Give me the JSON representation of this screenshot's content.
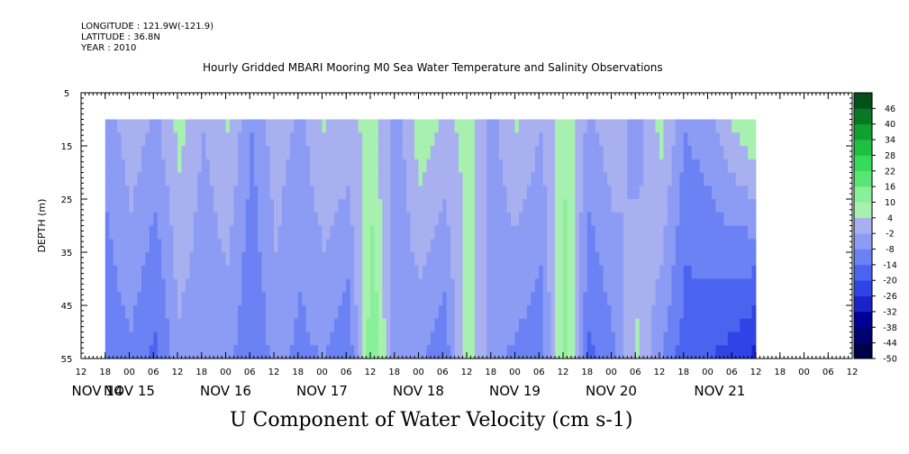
{
  "header": {
    "longitude": "LONGITUDE : 121.9W(-121.9)",
    "latitude": "LATITUDE : 36.8N",
    "year": "YEAR : 2010"
  },
  "chart_data": {
    "type": "heatmap",
    "title": "Hourly Gridded MBARI Mooring M0 Sea Water Temperature and Salinity Observations",
    "xlabel": "U Component of Water Velocity (cm s-1)",
    "ylabel": "DEPTH (m)",
    "ylim": [
      55,
      5
    ],
    "y_ticks": [
      5,
      15,
      25,
      35,
      45,
      55
    ],
    "x_hour_ticks": [
      "12",
      "18",
      "00",
      "06",
      "12",
      "18",
      "00",
      "06",
      "12",
      "18",
      "00",
      "06",
      "12",
      "18",
      "00",
      "06",
      "12",
      "18",
      "00",
      "06",
      "12",
      "18",
      "00",
      "06",
      "12",
      "18",
      "00",
      "06",
      "12",
      "18",
      "00",
      "06",
      "12"
    ],
    "x_day_labels": [
      "NOV 14",
      "NOV 15",
      "NOV 16",
      "NOV 17",
      "NOV 18",
      "NOV 19",
      "NOV 20",
      "NOV 21"
    ],
    "data_start": "2010-11-14 18:00",
    "data_end": "2010-11-21 12:00",
    "depth_range": [
      10,
      55
    ],
    "colorbar": {
      "ticks": [
        46,
        40,
        34,
        28,
        22,
        16,
        10,
        4,
        -2,
        -8,
        -14,
        -20,
        -26,
        -32,
        -38,
        -44,
        -50
      ],
      "range": [
        -50,
        52
      ],
      "colors": [
        "#00004a",
        "#000070",
        "#000096",
        "#1a22c8",
        "#3044e6",
        "#4a64f0",
        "#6a82f4",
        "#8c9cf4",
        "#a8b0f0",
        "#a8f0b0",
        "#88f098",
        "#5ae676",
        "#36dc58",
        "#1ec040",
        "#10a030",
        "#087824",
        "#02501a"
      ]
    },
    "velocity_profile": [
      {
        "t": "2010-11-14 18:00",
        "surface": -6,
        "bottom": -12
      },
      {
        "t": "2010-11-15 00:00",
        "surface": 2,
        "bottom": -10
      },
      {
        "t": "2010-11-15 06:00",
        "surface": -4,
        "bottom": -16
      },
      {
        "t": "2010-11-15 12:00",
        "surface": 6,
        "bottom": -4
      },
      {
        "t": "2010-11-15 18:00",
        "surface": -2,
        "bottom": -8
      },
      {
        "t": "2010-11-16 00:00",
        "surface": 4,
        "bottom": -6
      },
      {
        "t": "2010-11-16 06:00",
        "surface": -8,
        "bottom": -14
      },
      {
        "t": "2010-11-16 12:00",
        "surface": 2,
        "bottom": -6
      },
      {
        "t": "2010-11-16 18:00",
        "surface": -4,
        "bottom": -10
      },
      {
        "t": "2010-11-17 00:00",
        "surface": 4,
        "bottom": -8
      },
      {
        "t": "2010-11-17 06:00",
        "surface": 2,
        "bottom": -14
      },
      {
        "t": "2010-11-17 12:00",
        "surface": 6,
        "bottom": 16
      },
      {
        "t": "2010-11-17 18:00",
        "surface": -6,
        "bottom": -6
      },
      {
        "t": "2010-11-18 00:00",
        "surface": 8,
        "bottom": -8
      },
      {
        "t": "2010-11-18 06:00",
        "surface": 2,
        "bottom": -12
      },
      {
        "t": "2010-11-18 12:00",
        "surface": 6,
        "bottom": 8
      },
      {
        "t": "2010-11-18 18:00",
        "surface": -4,
        "bottom": -6
      },
      {
        "t": "2010-11-19 00:00",
        "surface": 4,
        "bottom": -10
      },
      {
        "t": "2010-11-19 06:00",
        "surface": -2,
        "bottom": -12
      },
      {
        "t": "2010-11-19 12:00",
        "surface": 8,
        "bottom": 14
      },
      {
        "t": "2010-11-19 18:00",
        "surface": -4,
        "bottom": -16
      },
      {
        "t": "2010-11-20 00:00",
        "surface": 2,
        "bottom": -10
      },
      {
        "t": "2010-11-20 06:00",
        "surface": -6,
        "bottom": 6
      },
      {
        "t": "2010-11-20 12:00",
        "surface": 6,
        "bottom": -8
      },
      {
        "t": "2010-11-20 18:00",
        "surface": -8,
        "bottom": -18
      },
      {
        "t": "2010-11-21 00:00",
        "surface": -4,
        "bottom": -20
      },
      {
        "t": "2010-11-21 06:00",
        "surface": 4,
        "bottom": -24
      },
      {
        "t": "2010-11-21 12:00",
        "surface": 10,
        "bottom": -30
      }
    ]
  }
}
